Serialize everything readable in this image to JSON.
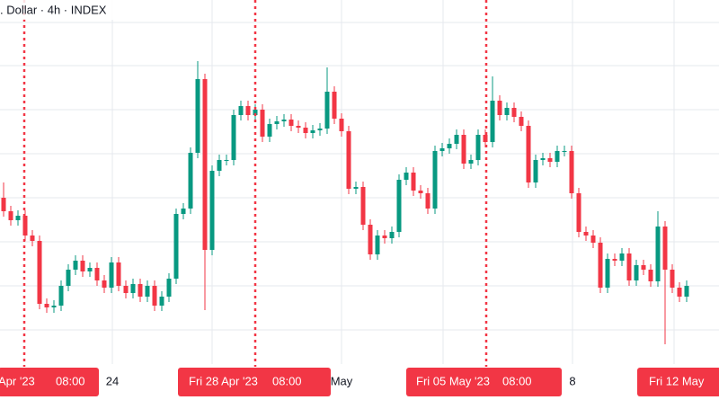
{
  "chart_data": {
    "type": "candlestick",
    "title": ". Dollar · 4h · INDEX",
    "ylim": [
      0,
      445
    ],
    "up_color": "#089981",
    "down_color": "#f23645",
    "open": [
      225,
      210,
      200,
      205,
      183,
      177,
      107,
      103,
      105,
      127,
      145,
      155,
      143,
      147,
      133,
      125,
      153,
      127,
      119,
      129,
      115,
      127,
      105,
      115,
      135,
      207,
      213,
      275,
      357,
      167,
      255,
      267,
      267,
      317,
      327,
      317,
      323,
      293,
      307,
      310,
      312,
      305,
      303,
      297,
      300,
      302,
      343,
      313,
      299,
      235,
      237,
      195,
      162,
      183,
      180,
      187,
      245,
      253,
      233,
      230,
      213,
      277,
      280,
      285,
      295,
      263,
      267,
      295,
      287,
      333,
      317,
      325,
      315,
      305,
      242,
      267,
      269,
      265,
      277,
      277,
      230,
      187,
      183,
      175,
      125,
      157,
      155,
      163,
      133,
      150,
      145,
      132,
      193,
      145,
      125,
      115
    ],
    "high": [
      242,
      216,
      211,
      211,
      189,
      183,
      113,
      111,
      133,
      151,
      161,
      161,
      153,
      153,
      139,
      159,
      159,
      133,
      135,
      135,
      133,
      133,
      121,
      141,
      213,
      219,
      281,
      377,
      363,
      261,
      273,
      273,
      323,
      333,
      333,
      329,
      329,
      313,
      316,
      318,
      318,
      311,
      309,
      306,
      308,
      370,
      349,
      319,
      305,
      243,
      243,
      201,
      189,
      189,
      193,
      251,
      259,
      259,
      239,
      236,
      283,
      286,
      291,
      301,
      301,
      273,
      301,
      301,
      360,
      339,
      331,
      331,
      321,
      311,
      273,
      275,
      275,
      283,
      283,
      283,
      236,
      193,
      189,
      181,
      163,
      163,
      169,
      169,
      156,
      156,
      151,
      210,
      199,
      151,
      131,
      133
    ],
    "low": [
      204,
      194,
      194,
      177,
      171,
      101,
      97,
      97,
      99,
      121,
      139,
      137,
      137,
      127,
      119,
      119,
      121,
      113,
      113,
      109,
      109,
      99,
      99,
      109,
      129,
      201,
      207,
      269,
      100,
      161,
      249,
      261,
      261,
      311,
      311,
      311,
      287,
      287,
      301,
      304,
      299,
      297,
      291,
      291,
      294,
      296,
      307,
      293,
      229,
      229,
      189,
      156,
      156,
      174,
      174,
      181,
      239,
      227,
      224,
      207,
      207,
      271,
      274,
      279,
      257,
      257,
      261,
      281,
      281,
      311,
      311,
      309,
      299,
      236,
      236,
      261,
      259,
      259,
      271,
      224,
      181,
      177,
      169,
      119,
      119,
      149,
      149,
      127,
      127,
      139,
      126,
      126,
      62,
      119,
      109,
      109
    ],
    "close": [
      210,
      200,
      205,
      183,
      177,
      107,
      103,
      105,
      127,
      145,
      155,
      143,
      147,
      133,
      125,
      153,
      127,
      119,
      129,
      115,
      127,
      105,
      115,
      135,
      207,
      213,
      275,
      357,
      167,
      255,
      267,
      267,
      317,
      327,
      317,
      323,
      293,
      307,
      310,
      312,
      305,
      303,
      297,
      300,
      302,
      343,
      313,
      299,
      235,
      237,
      195,
      162,
      183,
      180,
      187,
      245,
      253,
      233,
      230,
      213,
      277,
      280,
      285,
      295,
      263,
      267,
      295,
      287,
      333,
      317,
      325,
      315,
      305,
      242,
      267,
      269,
      265,
      277,
      277,
      230,
      187,
      183,
      175,
      125,
      157,
      155,
      163,
      133,
      150,
      145,
      132,
      193,
      145,
      125,
      115,
      127
    ],
    "x_labels": [
      "24",
      "May",
      "8"
    ],
    "session_labels": [
      {
        "date": "Apr '23",
        "time": "08:00"
      },
      {
        "date": "Fri 28 Apr '23",
        "time": "08:00"
      },
      {
        "date": "Fri 05 May '23",
        "time": "08:00"
      },
      {
        "date": "Fri 12 May"
      }
    ]
  }
}
